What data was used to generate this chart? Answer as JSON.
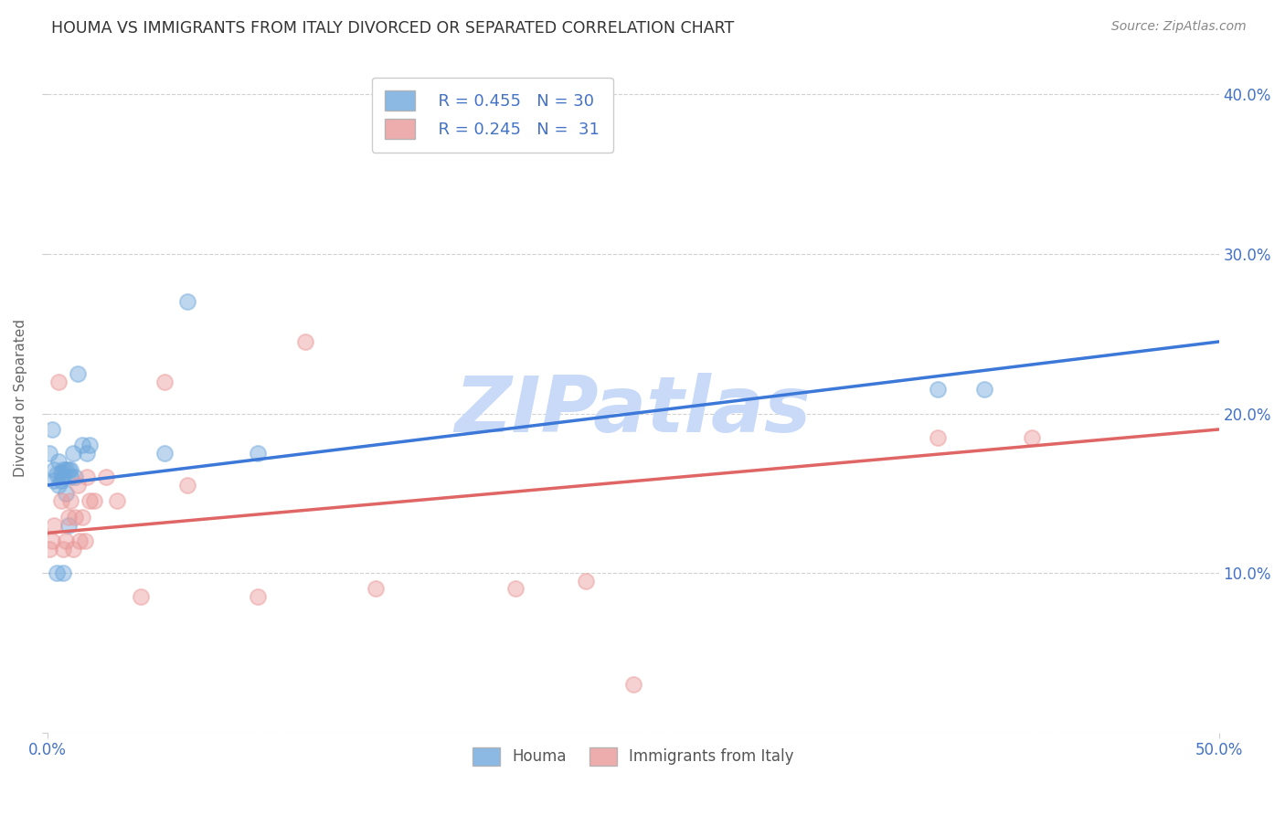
{
  "title": "HOUMA VS IMMIGRANTS FROM ITALY DIVORCED OR SEPARATED CORRELATION CHART",
  "source": "Source: ZipAtlas.com",
  "tick_color": "#4472c4",
  "ylabel": "Divorced or Separated",
  "x_min": 0.0,
  "x_max": 0.5,
  "y_min": 0.0,
  "y_max": 0.42,
  "x_tick_positions": [
    0.0,
    0.5
  ],
  "x_tick_labels": [
    "0.0%",
    "50.0%"
  ],
  "y_ticks": [
    0.0,
    0.1,
    0.2,
    0.3,
    0.4
  ],
  "y_tick_labels": [
    "",
    "10.0%",
    "20.0%",
    "30.0%",
    "40.0%"
  ],
  "houma_R": 0.455,
  "houma_N": 30,
  "italy_R": 0.245,
  "italy_N": 31,
  "houma_color": "#6fa8dc",
  "italy_color": "#ea9999",
  "houma_line_color": "#3c78d8",
  "italy_line_color": "#e06666",
  "watermark": "ZIPatlas",
  "watermark_color": "#c9daf8",
  "houma_x": [
    0.001,
    0.002,
    0.003,
    0.003,
    0.004,
    0.004,
    0.005,
    0.005,
    0.006,
    0.006,
    0.007,
    0.007,
    0.007,
    0.008,
    0.008,
    0.009,
    0.009,
    0.01,
    0.01,
    0.011,
    0.012,
    0.013,
    0.015,
    0.017,
    0.05,
    0.06,
    0.09,
    0.38,
    0.4,
    0.018
  ],
  "houma_y": [
    0.175,
    0.19,
    0.165,
    0.158,
    0.162,
    0.1,
    0.17,
    0.155,
    0.163,
    0.158,
    0.165,
    0.1,
    0.16,
    0.165,
    0.15,
    0.165,
    0.13,
    0.165,
    0.16,
    0.175,
    0.16,
    0.225,
    0.18,
    0.175,
    0.175,
    0.27,
    0.175,
    0.215,
    0.215,
    0.18
  ],
  "italy_x": [
    0.001,
    0.002,
    0.003,
    0.005,
    0.006,
    0.007,
    0.008,
    0.009,
    0.01,
    0.011,
    0.012,
    0.013,
    0.014,
    0.015,
    0.016,
    0.017,
    0.018,
    0.02,
    0.025,
    0.03,
    0.04,
    0.05,
    0.06,
    0.09,
    0.11,
    0.14,
    0.2,
    0.23,
    0.25,
    0.38,
    0.42
  ],
  "italy_y": [
    0.115,
    0.12,
    0.13,
    0.22,
    0.145,
    0.115,
    0.12,
    0.135,
    0.145,
    0.115,
    0.135,
    0.155,
    0.12,
    0.135,
    0.12,
    0.16,
    0.145,
    0.145,
    0.16,
    0.145,
    0.085,
    0.22,
    0.155,
    0.085,
    0.245,
    0.09,
    0.09,
    0.095,
    0.03,
    0.185,
    0.185
  ],
  "houma_line_x0": 0.0,
  "houma_line_x1": 0.5,
  "houma_line_y0": 0.155,
  "houma_line_y1": 0.245,
  "italy_line_x0": 0.0,
  "italy_line_x1": 0.5,
  "italy_line_y0": 0.125,
  "italy_line_y1": 0.19
}
